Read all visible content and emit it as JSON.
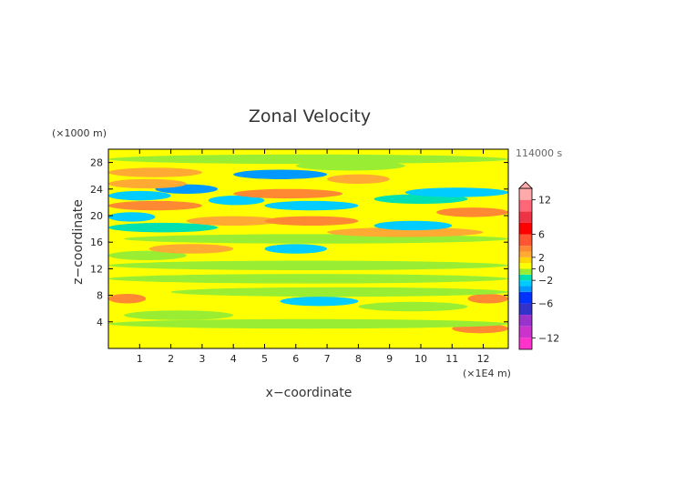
{
  "chart_data": {
    "type": "heatmap",
    "title": "Zonal Velocity",
    "xlabel": "x−coordinate",
    "ylabel": "z−coordinate",
    "x_unit": "(×1E4 m)",
    "y_unit": "(×1000 m)",
    "time_label": "114000 s",
    "xlim": [
      0,
      12.8
    ],
    "ylim": [
      0,
      30
    ],
    "x_ticks": [
      1,
      2,
      3,
      4,
      5,
      6,
      7,
      8,
      9,
      10,
      11,
      12
    ],
    "y_ticks": [
      4,
      8,
      12,
      16,
      20,
      24,
      28
    ],
    "colorbar": {
      "ticks": [
        12,
        6,
        2,
        0,
        -2,
        -6,
        -12
      ],
      "tick_labels": [
        "12",
        "6",
        "2",
        "0",
        "−2",
        "−6",
        "−12"
      ],
      "range": [
        -14,
        14
      ],
      "levels": [
        {
          "from": -14,
          "to": -12,
          "color": "#ff33cc"
        },
        {
          "from": -12,
          "to": -10,
          "color": "#cc33cc"
        },
        {
          "from": -10,
          "to": -8,
          "color": "#9933cc"
        },
        {
          "from": -8,
          "to": -6,
          "color": "#3333cc"
        },
        {
          "from": -6,
          "to": -4,
          "color": "#0033ff"
        },
        {
          "from": -4,
          "to": -3,
          "color": "#0099ff"
        },
        {
          "from": -3,
          "to": -2,
          "color": "#00ccff"
        },
        {
          "from": -2,
          "to": -1,
          "color": "#00e0b0"
        },
        {
          "from": -1,
          "to": 0,
          "color": "#99ee33"
        },
        {
          "from": 0,
          "to": 1,
          "color": "#ffff00"
        },
        {
          "from": 1,
          "to": 2,
          "color": "#ffd700"
        },
        {
          "from": 2,
          "to": 3,
          "color": "#ffaa33"
        },
        {
          "from": 3,
          "to": 4,
          "color": "#ff8833"
        },
        {
          "from": 4,
          "to": 6,
          "color": "#ff5533"
        },
        {
          "from": 6,
          "to": 8,
          "color": "#ff0000"
        },
        {
          "from": 8,
          "to": 10,
          "color": "#ee3344"
        },
        {
          "from": 10,
          "to": 12,
          "color": "#ff6677"
        },
        {
          "from": 12,
          "to": 14,
          "color": "#ffaaaa"
        }
      ]
    },
    "background_value": 0.3,
    "bands": [
      {
        "z": 1.5,
        "x0": 0,
        "x1": 3.0,
        "value": 0.7
      },
      {
        "z": 2.5,
        "x0": 3,
        "x1": 12.8,
        "value": 0.2
      },
      {
        "z": 3.0,
        "x0": 11.0,
        "x1": 12.8,
        "value": 3.0
      },
      {
        "z": 3.7,
        "x0": 0,
        "x1": 12.8,
        "value": -0.6
      },
      {
        "z": 5.0,
        "x0": 0.5,
        "x1": 4.0,
        "value": -0.7
      },
      {
        "z": 6.3,
        "x0": 8.0,
        "x1": 11.5,
        "value": -0.7
      },
      {
        "z": 7.5,
        "x0": 0,
        "x1": 1.2,
        "value": 3.0
      },
      {
        "z": 7.5,
        "x0": 11.5,
        "x1": 12.8,
        "value": 3.0
      },
      {
        "z": 7.1,
        "x0": 5.5,
        "x1": 8.0,
        "value": -2.3
      },
      {
        "z": 8.5,
        "x0": 2.0,
        "x1": 12.8,
        "value": -0.5
      },
      {
        "z": 10.5,
        "x0": 0,
        "x1": 12.8,
        "value": -0.6
      },
      {
        "z": 12.5,
        "x0": 0,
        "x1": 12.8,
        "value": -0.5
      },
      {
        "z": 14.0,
        "x0": 0,
        "x1": 2.5,
        "value": -0.6
      },
      {
        "z": 15.0,
        "x0": 1.3,
        "x1": 4.0,
        "value": 2.8
      },
      {
        "z": 15.0,
        "x0": 5.0,
        "x1": 7.0,
        "value": -2.3
      },
      {
        "z": 16.5,
        "x0": 0.5,
        "x1": 12.8,
        "value": -0.6
      },
      {
        "z": 17.5,
        "x0": 7.0,
        "x1": 12.0,
        "value": 2.5
      },
      {
        "z": 18.2,
        "x0": 0,
        "x1": 3.5,
        "value": -1.5
      },
      {
        "z": 18.5,
        "x0": 8.5,
        "x1": 11.0,
        "value": -2.2
      },
      {
        "z": 19.2,
        "x0": 2.5,
        "x1": 5.5,
        "value": 2.8
      },
      {
        "z": 19.2,
        "x0": 5.0,
        "x1": 8.0,
        "value": 3.5
      },
      {
        "z": 19.8,
        "x0": 0,
        "x1": 1.5,
        "value": -2.3
      },
      {
        "z": 20.5,
        "x0": 10.5,
        "x1": 12.8,
        "value": 3.5
      },
      {
        "z": 21.5,
        "x0": 0,
        "x1": 3.0,
        "value": 3.5
      },
      {
        "z": 21.5,
        "x0": 5.0,
        "x1": 8.0,
        "value": -2.8
      },
      {
        "z": 22.3,
        "x0": 3.2,
        "x1": 5.0,
        "value": -2.3
      },
      {
        "z": 22.5,
        "x0": 8.5,
        "x1": 11.5,
        "value": -1.5
      },
      {
        "z": 23.0,
        "x0": 0,
        "x1": 2.0,
        "value": -2.3
      },
      {
        "z": 23.3,
        "x0": 4.0,
        "x1": 7.5,
        "value": 3.8
      },
      {
        "z": 23.5,
        "x0": 9.5,
        "x1": 12.8,
        "value": -2.3
      },
      {
        "z": 24.0,
        "x0": 1.5,
        "x1": 3.5,
        "value": -3.5
      },
      {
        "z": 24.8,
        "x0": 0,
        "x1": 2.5,
        "value": 2.8
      },
      {
        "z": 25.5,
        "x0": 7.0,
        "x1": 9.0,
        "value": 2.5
      },
      {
        "z": 26.2,
        "x0": 4.0,
        "x1": 7.0,
        "value": -3.2
      },
      {
        "z": 26.5,
        "x0": 0,
        "x1": 3.0,
        "value": 2.8
      },
      {
        "z": 27.5,
        "x0": 6.0,
        "x1": 9.5,
        "value": -0.6
      },
      {
        "z": 28.5,
        "x0": 0,
        "x1": 12.8,
        "value": -0.5
      }
    ]
  }
}
